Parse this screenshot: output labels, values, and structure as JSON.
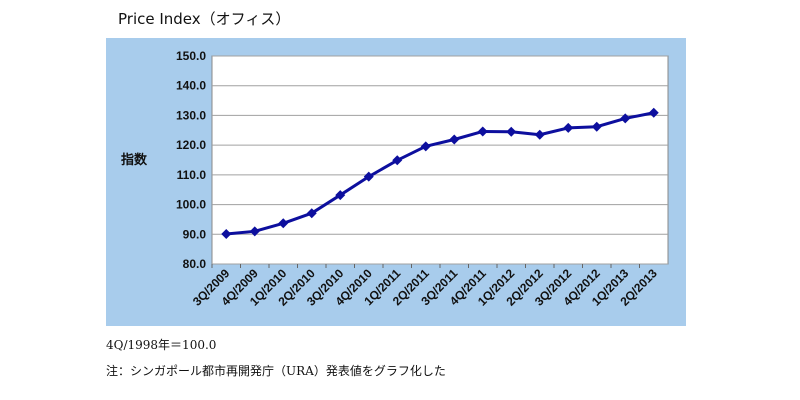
{
  "title": "Price Index（オフィス）",
  "chart_data": {
    "type": "line",
    "title": "Price Index（オフィス）",
    "xlabel": "",
    "ylabel": "指数",
    "ylim": [
      80,
      150
    ],
    "y_ticks": [
      "80.0",
      "90.0",
      "100.0",
      "110.0",
      "120.0",
      "130.0",
      "140.0",
      "150.0"
    ],
    "grid": true,
    "legend": "none",
    "categories": [
      "3Q/2009",
      "4Q/2009",
      "1Q/2010",
      "2Q/2010",
      "3Q/2010",
      "4Q/2010",
      "1Q/2011",
      "2Q/2011",
      "3Q/2011",
      "4Q/2011",
      "1Q/2012",
      "2Q/2012",
      "3Q/2012",
      "4Q/2012",
      "1Q/2013",
      "2Q/2013"
    ],
    "series": [
      {
        "values": [
          90.1,
          91.0,
          93.7,
          97.1,
          103.2,
          109.4,
          114.9,
          119.6,
          121.9,
          124.6,
          124.5,
          123.5,
          125.8,
          126.2,
          129.0,
          130.9
        ]
      }
    ],
    "colors": {
      "line": "#0d0f9e",
      "plot_bg": "#ffffff",
      "frame_bg": "#a8ccec"
    }
  },
  "notes": {
    "base": "4Q/1998年＝100.0",
    "source": "注：シンガポール都市再開発庁（URA）発表値をグラフ化した"
  }
}
